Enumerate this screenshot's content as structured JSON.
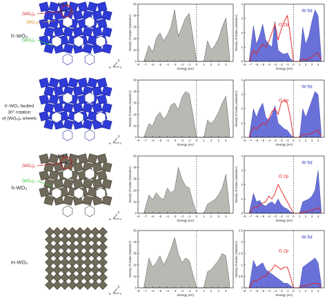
{
  "rows": [
    {
      "id": "hprime",
      "label_lines": [
        "h'-WO₃"
      ],
      "structure": "hex-blue",
      "annotations": {
        "distance": "5.1 Å",
        "ring6": "(WO₆)₆",
        "ring3": "(WO₆)₃",
        "ring4": "(WO₆)₄"
      },
      "axes": [
        "a",
        "b",
        "c"
      ],
      "dos_total": {
        "ylabel": "Density of states (states/eV)",
        "xlabel": "Energy (eV)",
        "ylim": [
          0,
          50
        ],
        "yticks": [
          0,
          10,
          20,
          30,
          40,
          50
        ]
      },
      "dos_partial": {
        "ylabel": "Density of states (states/eV)",
        "xlabel": "Energy (eV)",
        "ylim": [
          0,
          4
        ],
        "yticks": [
          0,
          1,
          2,
          3,
          4
        ],
        "o_label": "O 2p",
        "w_label": "W 5d"
      }
    },
    {
      "id": "hprime-faulted",
      "label_lines": [
        "h'-WO₃ faulted",
        "30° rotation",
        "of (WO₆)₆ wheels"
      ],
      "structure": "hex-blue",
      "annotations": {},
      "axes": [
        "a",
        "b",
        "c"
      ],
      "dos_total": {
        "ylabel": "Density of states (states/eV)",
        "xlabel": "Energy (eV)",
        "ylim": [
          0,
          50
        ],
        "yticks": [
          0,
          10,
          20,
          30,
          40,
          50
        ]
      },
      "dos_partial": {
        "ylabel": "Density of states (states/eV)",
        "xlabel": "Energy (eV)",
        "ylim": [
          0,
          4
        ],
        "yticks": [
          0,
          1,
          2,
          3,
          4
        ],
        "o_label": "O 2p",
        "w_label": "W 5d"
      }
    },
    {
      "id": "h",
      "label_lines": [
        "h-WO₃"
      ],
      "structure": "hex-grey",
      "annotations": {
        "distance": "5.4 Å",
        "ring6": "(WO₆)₆",
        "ring3": "(WO₆)₃"
      },
      "axes": [
        "a",
        "b",
        "c"
      ],
      "dos_total": {
        "ylabel": "Density of states (states/eV)",
        "xlabel": "Energy (eV)",
        "ylim": [
          0,
          50
        ],
        "yticks": [
          0,
          10,
          20,
          30,
          40,
          50
        ]
      },
      "dos_partial": {
        "ylabel": "Density of states (states/eV)",
        "xlabel": "Energy (eV)",
        "ylim": [
          0,
          4
        ],
        "yticks": [
          0,
          1,
          2,
          3,
          4
        ],
        "o_label": "O 2p",
        "w_label": "W 5d"
      }
    },
    {
      "id": "m",
      "label_lines": [
        "m-WO₃"
      ],
      "structure": "mono-grey",
      "annotations": {},
      "axes": [
        "a",
        "b",
        "c"
      ],
      "dos_total": {
        "ylabel": "Density of states (states/eV)",
        "xlabel": "Energy (eV)",
        "ylim": [
          0,
          50
        ],
        "yticks": [
          0,
          10,
          20,
          30,
          40,
          50
        ]
      },
      "dos_partial": {
        "ylabel": "Density of states (states/eV)",
        "xlabel": "Energy (eV)",
        "ylim": [
          0,
          2.5
        ],
        "yticks": [
          0,
          0.5,
          1,
          1.5,
          2,
          2.5
        ],
        "o_label": "O 2p",
        "w_label": "W 5d"
      }
    }
  ],
  "chart_data": [
    {
      "type": "area",
      "panel": "h'-WO3 total DOS",
      "xlabel": "Energy (eV)",
      "ylabel": "Density of states (states/eV)",
      "xlim": [
        -8,
        5
      ],
      "ylim": [
        0,
        50
      ],
      "x": [
        -7.2,
        -6.5,
        -6,
        -5.5,
        -5,
        -4.5,
        -4,
        -3.5,
        -3,
        -2.5,
        -2,
        -1.5,
        -1,
        -0.5,
        0,
        0.5,
        1,
        1.5,
        2,
        2.5,
        3,
        3.5,
        4,
        4.5
      ],
      "values": [
        0,
        14,
        8,
        20,
        25,
        18,
        23,
        30,
        45,
        22,
        30,
        38,
        42,
        22,
        0,
        0,
        0,
        18,
        10,
        14,
        20,
        30,
        38,
        5
      ]
    },
    {
      "type": "area",
      "panel": "h'-WO3 partial DOS",
      "xlabel": "Energy (eV)",
      "ylabel": "Density of states (states/eV)",
      "xlim": [
        -8,
        5
      ],
      "ylim": [
        0,
        4
      ],
      "x": [
        -7.2,
        -6.5,
        -6,
        -5.5,
        -5,
        -4.5,
        -4,
        -3.5,
        -3,
        -2.5,
        -2,
        -1.5,
        -1,
        -0.5,
        0,
        0.5,
        1,
        1.5,
        2,
        2.5,
        3,
        3.5,
        4,
        4.5
      ],
      "series": [
        {
          "name": "W 5d",
          "values": [
            0,
            2.5,
            1.2,
            1.8,
            2.6,
            1.5,
            1.2,
            1.0,
            2.8,
            0.8,
            0.6,
            0.5,
            0.6,
            0.2,
            0,
            0,
            0,
            2.4,
            1.2,
            1.8,
            2.8,
            3.6,
            3.2,
            0.4
          ]
        },
        {
          "name": "O 2p",
          "values": [
            0,
            0.8,
            0.5,
            0.9,
            1.2,
            1.0,
            1.4,
            2.0,
            2.6,
            1.5,
            2.2,
            2.8,
            3.2,
            1.8,
            0,
            0,
            0,
            0.2,
            0.1,
            0.2,
            0.3,
            0.5,
            0.6,
            0.1
          ]
        }
      ]
    },
    {
      "type": "area",
      "panel": "h'-WO3 faulted total DOS",
      "xlabel": "Energy (eV)",
      "ylabel": "Density of states (states/eV)",
      "xlim": [
        -8,
        5
      ],
      "ylim": [
        0,
        50
      ],
      "x": [
        -7.2,
        -6.5,
        -6,
        -5.5,
        -5,
        -4.5,
        -4,
        -3.5,
        -3,
        -2.5,
        -2,
        -1.5,
        -1,
        -0.5,
        0,
        0.5,
        1,
        1.5,
        2,
        2.5,
        3,
        3.5,
        4,
        4.5
      ],
      "values": [
        0,
        12,
        10,
        18,
        22,
        16,
        20,
        28,
        30,
        24,
        35,
        40,
        38,
        20,
        0,
        0,
        0,
        15,
        12,
        16,
        22,
        30,
        36,
        6
      ]
    },
    {
      "type": "area",
      "panel": "h'-WO3 faulted partial DOS",
      "xlabel": "Energy (eV)",
      "ylabel": "Density of states (states/eV)",
      "xlim": [
        -8,
        5
      ],
      "ylim": [
        0,
        4
      ],
      "x": [
        -7.2,
        -6.5,
        -6,
        -5.5,
        -5,
        -4.5,
        -4,
        -3.5,
        -3,
        -2.5,
        -2,
        -1.5,
        -1,
        -0.5,
        0,
        0.5,
        1,
        1.5,
        2,
        2.5,
        3,
        3.5,
        4,
        4.5
      ],
      "series": [
        {
          "name": "W 5d",
          "values": [
            0,
            2.0,
            1.4,
            2.0,
            2.4,
            1.4,
            1.2,
            1.6,
            2.2,
            1.0,
            0.8,
            0.6,
            0.5,
            0.2,
            0,
            0,
            0,
            2.0,
            1.4,
            2.0,
            2.6,
            3.2,
            3.0,
            0.4
          ]
        },
        {
          "name": "O 2p",
          "values": [
            0,
            0.7,
            0.6,
            0.8,
            1.0,
            0.9,
            1.3,
            1.8,
            2.0,
            1.6,
            2.4,
            2.6,
            2.4,
            1.4,
            0,
            0,
            0,
            0.2,
            0.2,
            0.2,
            0.3,
            0.4,
            0.5,
            0.1
          ]
        }
      ]
    },
    {
      "type": "area",
      "panel": "h-WO3 total DOS",
      "xlabel": "Energy (eV)",
      "ylabel": "Density of states (states/eV)",
      "xlim": [
        -8,
        5
      ],
      "ylim": [
        0,
        50
      ],
      "x": [
        -7.2,
        -6.5,
        -6,
        -5.5,
        -5,
        -4.5,
        -4,
        -3.5,
        -3,
        -2.5,
        -2,
        -1.5,
        -1,
        -0.5,
        0,
        0.5,
        1,
        1.5,
        2,
        2.5,
        3,
        3.5,
        4,
        4.5
      ],
      "values": [
        0,
        16,
        12,
        18,
        14,
        12,
        22,
        18,
        20,
        40,
        30,
        24,
        22,
        10,
        0,
        0,
        0,
        8,
        10,
        12,
        16,
        22,
        34,
        4
      ]
    },
    {
      "type": "area",
      "panel": "h-WO3 partial DOS",
      "xlabel": "Energy (eV)",
      "ylabel": "Density of states (states/eV)",
      "xlim": [
        -8,
        5
      ],
      "ylim": [
        0,
        4
      ],
      "x": [
        -7.2,
        -6.5,
        -6,
        -5.5,
        -5,
        -4.5,
        -4,
        -3.5,
        -3,
        -2.5,
        -2,
        -1.5,
        -1,
        -0.5,
        0,
        0.5,
        1,
        1.5,
        2,
        2.5,
        3,
        3.5,
        4,
        4.5
      ],
      "series": [
        {
          "name": "W 5d",
          "values": [
            0,
            1.4,
            0.8,
            0.9,
            0.6,
            0.5,
            0.7,
            0.8,
            0.6,
            1.0,
            0.6,
            0.4,
            0.3,
            0.1,
            0,
            0,
            0,
            0.8,
            0.9,
            1.0,
            1.2,
            1.6,
            3.0,
            0.3
          ]
        },
        {
          "name": "O 2p",
          "values": [
            0,
            0.4,
            0.4,
            0.6,
            0.7,
            0.8,
            1.2,
            1.0,
            1.4,
            2.0,
            1.6,
            1.2,
            0.8,
            0.4,
            0,
            0,
            0,
            0.1,
            0.1,
            0.2,
            0.2,
            0.3,
            0.4,
            0.1
          ]
        }
      ]
    },
    {
      "type": "area",
      "panel": "m-WO3 total DOS",
      "xlabel": "Energy (eV)",
      "ylabel": "Density of states (states/eV)",
      "xlim": [
        -8,
        5
      ],
      "ylim": [
        0,
        50
      ],
      "x": [
        -7.2,
        -6.5,
        -6,
        -5.5,
        -5,
        -4.5,
        -4,
        -3.5,
        -3,
        -2.5,
        -2,
        -1.5,
        -1,
        -0.5,
        0,
        0.5,
        1,
        1.5,
        2,
        2.5,
        3,
        3.5,
        4,
        4.5
      ],
      "values": [
        0,
        26,
        18,
        22,
        28,
        20,
        26,
        34,
        44,
        30,
        22,
        26,
        24,
        12,
        0,
        0,
        0,
        14,
        16,
        20,
        24,
        30,
        28,
        4
      ]
    },
    {
      "type": "area",
      "panel": "m-WO3 partial DOS",
      "xlabel": "Energy (eV)",
      "ylabel": "Density of states (states/eV)",
      "xlim": [
        -8,
        5
      ],
      "ylim": [
        0,
        2.5
      ],
      "x": [
        -7.2,
        -6.5,
        -6,
        -5.5,
        -5,
        -4.5,
        -4,
        -3.5,
        -3,
        -2.5,
        -2,
        -1.5,
        -1,
        -0.5,
        0,
        0.5,
        1,
        1.5,
        2,
        2.5,
        3,
        3.5,
        4,
        4.5
      ],
      "series": [
        {
          "name": "W 5d",
          "values": [
            0,
            1.2,
            0.9,
            1.0,
            1.1,
            0.8,
            0.7,
            0.6,
            0.5,
            0.4,
            0.3,
            0.2,
            0.2,
            0.1,
            0,
            0,
            0,
            0.9,
            1.0,
            1.1,
            1.2,
            1.3,
            1.1,
            0.2
          ]
        },
        {
          "name": "O 2p",
          "values": [
            0,
            0.3,
            0.3,
            0.4,
            0.5,
            0.5,
            0.7,
            0.8,
            1.0,
            0.9,
            0.8,
            0.9,
            0.9,
            0.5,
            0,
            0,
            0,
            0.1,
            0.1,
            0.1,
            0.2,
            0.2,
            0.2,
            0.05
          ]
        }
      ]
    }
  ],
  "colors": {
    "w5d_fill": "#4f58d2",
    "o2p_line": "#e01b1b",
    "total_fill": "#b9b9b4",
    "blue_poly": "#2f3bd6",
    "grey_poly": "#6f6a5a",
    "label_red": "#d21f1f",
    "label_orange": "#e08a12",
    "label_green": "#2bbd2b"
  }
}
